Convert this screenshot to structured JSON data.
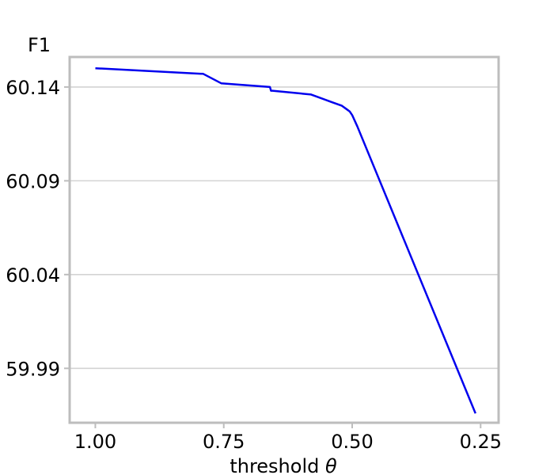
{
  "chart_data": {
    "type": "line",
    "title": "",
    "xlabel": "threshold ",
    "xlabel_symbol": "θ",
    "ylabel": "F1",
    "x_inverted": true,
    "xlim": [
      1.05,
      0.215
    ],
    "ylim": [
      59.961,
      60.156
    ],
    "xticks": [
      1.0,
      0.75,
      0.5,
      0.25
    ],
    "xtick_labels": [
      "1.00",
      "0.75",
      "0.50",
      "0.25"
    ],
    "yticks": [
      59.99,
      60.04,
      60.09,
      60.14
    ],
    "ytick_labels": [
      "59.99",
      "60.04",
      "60.09",
      "60.14"
    ],
    "grid": "horizontal",
    "colors": {
      "line": "#0000ee",
      "grid": "#d3d3d3",
      "frame": "#bdbdbd"
    },
    "series": [
      {
        "x": [
          1.0,
          0.79,
          0.755,
          0.66,
          0.658,
          0.655,
          0.58,
          0.54,
          0.52,
          0.51,
          0.505,
          0.5,
          0.49,
          0.26
        ],
        "y": [
          60.15,
          60.147,
          60.142,
          60.14,
          60.138,
          60.138,
          60.136,
          60.132,
          60.13,
          60.128,
          60.127,
          60.125,
          60.119,
          59.966
        ]
      }
    ]
  }
}
